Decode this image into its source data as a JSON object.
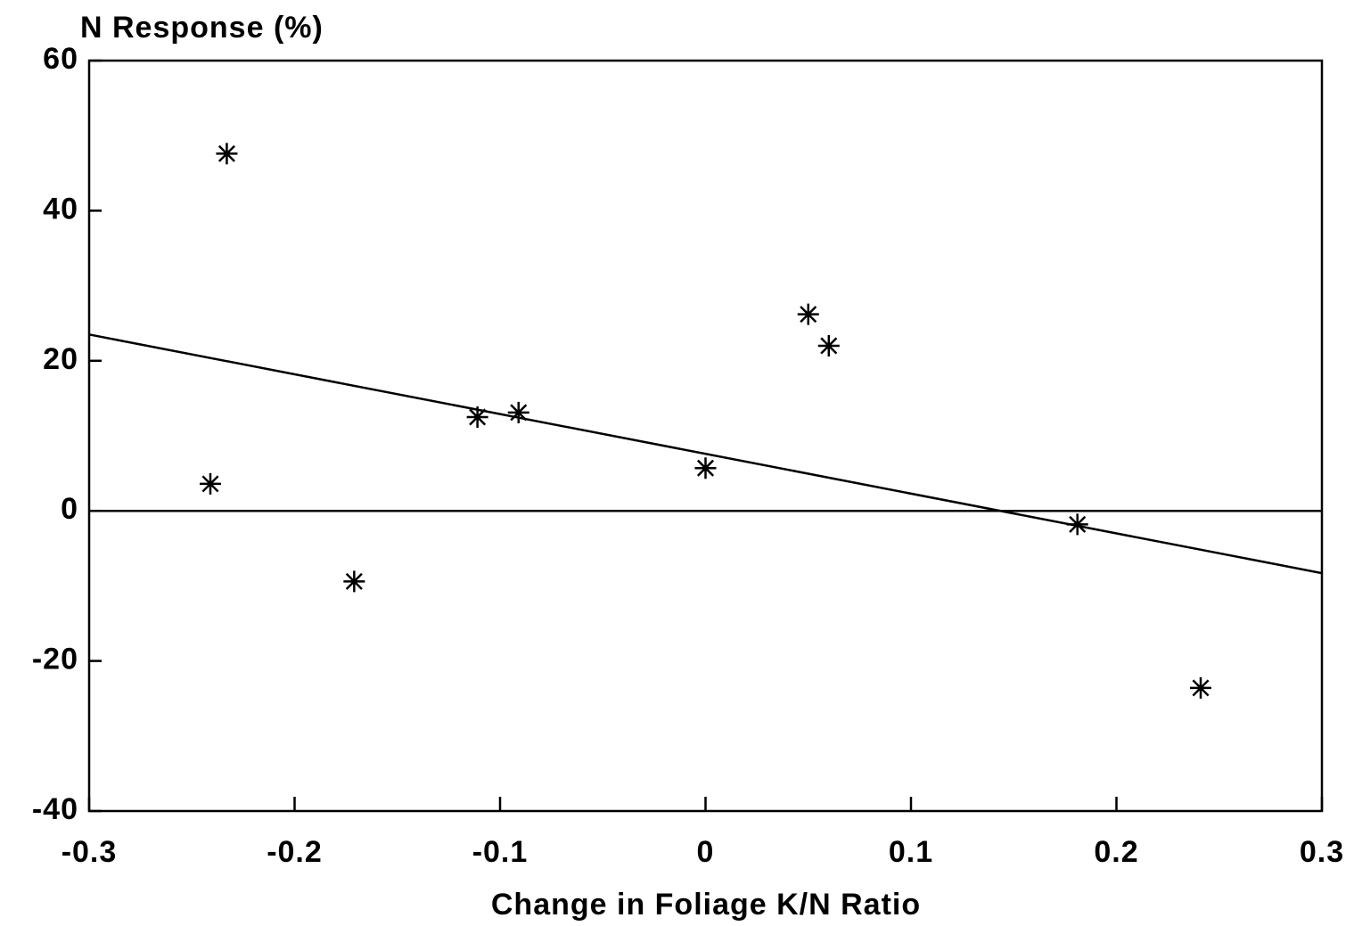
{
  "chart_data": {
    "type": "scatter",
    "title": "N Response (%)",
    "x_label": "Change in Foliage K/N Ratio",
    "x": [
      -0.233,
      -0.241,
      -0.171,
      -0.111,
      -0.091,
      0,
      0.05,
      0.06,
      0.181,
      0.241
    ],
    "values": [
      47.6,
      3.6,
      -9.4,
      12.5,
      13.1,
      5.7,
      26.2,
      22,
      -1.8,
      -23.6
    ],
    "color": "#000000",
    "trend_line": {
      "x": [
        -0.3,
        0.3
      ],
      "y": [
        23.5,
        -8.3
      ]
    },
    "reference_line": 0,
    "xlim": [
      -0.3,
      0.3
    ],
    "xticks": [
      -0.3,
      -0.2,
      -0.1,
      0,
      0.1,
      0.2,
      0.3
    ],
    "ylim": [
      -40,
      60
    ],
    "yticks": [
      -40,
      -20,
      0,
      20,
      40,
      60
    ],
    "grid": false
  }
}
